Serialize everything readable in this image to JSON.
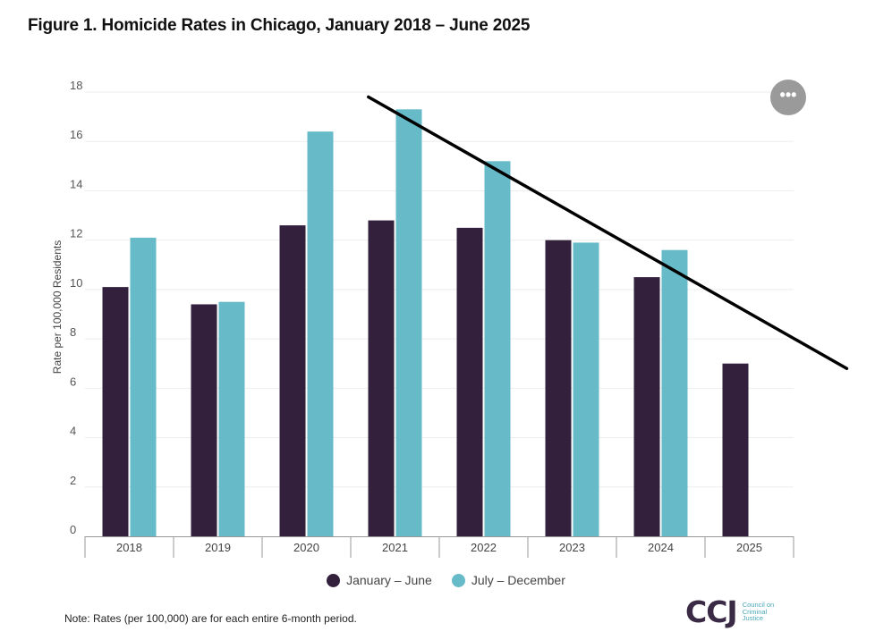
{
  "title": "Figure 1. Homicide Rates in Chicago, January 2018 – June 2025",
  "menu_glyph": "•••",
  "note": "Note: Rates (per 100,000) are for each entire 6-month period.",
  "logo": {
    "mark": "CCJ",
    "line1": "Council on",
    "line2": "Criminal",
    "line3": "Justice"
  },
  "colors": {
    "series1": "#33203d",
    "series2": "#67bac8",
    "trend": "#000000",
    "grid": "#eeeeee",
    "axis": "#999999"
  },
  "chart_data": {
    "type": "bar",
    "title": "Figure 1. Homicide Rates in Chicago, January 2018 – June 2025",
    "xlabel": "",
    "ylabel": "Rate per 100,000 Residents",
    "ylim": [
      0,
      18
    ],
    "yticks": [
      0,
      2,
      4,
      6,
      8,
      10,
      12,
      14,
      16,
      18
    ],
    "grid": true,
    "legend_position": "bottom-center",
    "categories": [
      "2018",
      "2019",
      "2020",
      "2021",
      "2022",
      "2023",
      "2024",
      "2025"
    ],
    "series": [
      {
        "name": "January – June",
        "values": [
          10.1,
          9.4,
          12.6,
          12.8,
          12.5,
          12.0,
          10.5,
          7.0
        ]
      },
      {
        "name": "July – December",
        "values": [
          12.1,
          9.5,
          16.4,
          17.3,
          15.2,
          11.9,
          11.6,
          null
        ]
      }
    ],
    "annotations": [
      {
        "type": "trend-line",
        "from": {
          "x": 3.2,
          "y": 17.8
        },
        "to": {
          "x": 8.6,
          "y": 6.8
        }
      }
    ]
  }
}
